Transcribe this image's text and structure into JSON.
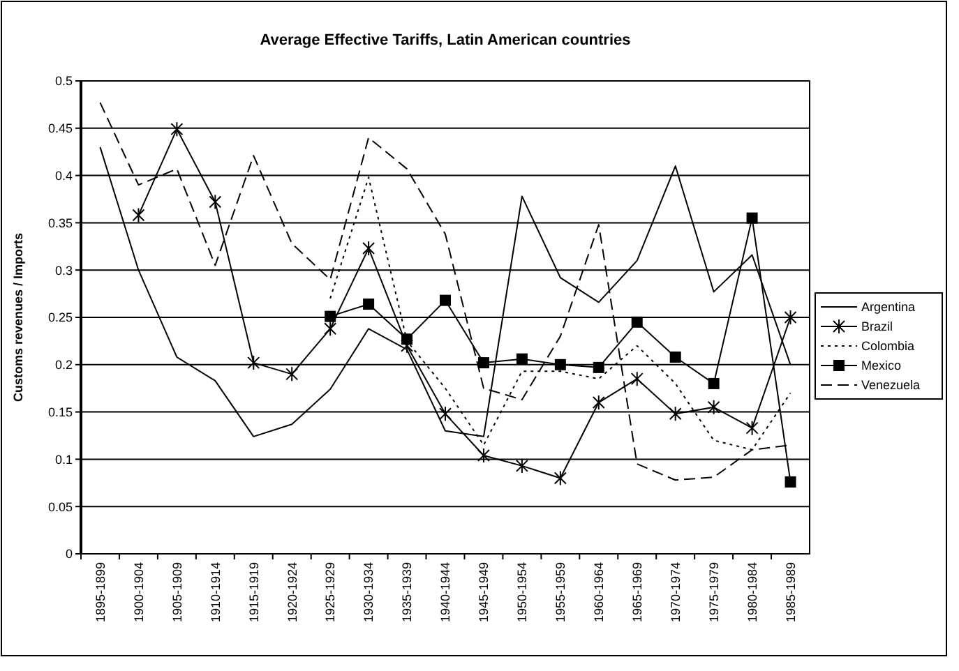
{
  "chart_data": {
    "type": "line",
    "title": "Average Effective Tariffs, Latin American countries",
    "ylabel": "Customs revenues  / Imports",
    "categories": [
      "1895-1899",
      "1900-1904",
      "1905-1909",
      "1910-1914",
      "1915-1919",
      "1920-1924",
      "1925-1929",
      "1930-1934",
      "1935-1939",
      "1940-1944",
      "1945-1949",
      "1950-1954",
      "1955-1959",
      "1960-1964",
      "1965-1969",
      "1970-1974",
      "1975-1979",
      "1980-1984",
      "1985-1989"
    ],
    "series": [
      {
        "name": "Argentina",
        "color": "#000000",
        "marker": "none",
        "line_style": "solid",
        "values": [
          0.43,
          0.3,
          0.208,
          0.183,
          0.124,
          0.137,
          0.174,
          0.238,
          0.216,
          0.13,
          0.124,
          0.378,
          0.292,
          0.266,
          0.31,
          0.41,
          0.277,
          0.316,
          0.2
        ]
      },
      {
        "name": "Brazil",
        "color": "#000000",
        "marker": "cross",
        "line_style": "solid",
        "values": [
          null,
          0.358,
          0.449,
          0.372,
          0.202,
          0.19,
          0.238,
          0.323,
          0.22,
          0.148,
          0.104,
          0.093,
          0.08,
          0.16,
          0.185,
          0.148,
          0.155,
          0.133,
          0.25
        ]
      },
      {
        "name": "Colombia",
        "color": "#000000",
        "marker": "none",
        "line_style": "dotted",
        "values": [
          null,
          null,
          null,
          null,
          null,
          null,
          0.27,
          0.398,
          0.225,
          0.175,
          0.115,
          0.193,
          0.193,
          0.185,
          0.22,
          0.18,
          0.12,
          0.11,
          0.17
        ]
      },
      {
        "name": "Mexico",
        "color": "#000000",
        "marker": "square",
        "line_style": "solid",
        "values": [
          null,
          null,
          null,
          null,
          null,
          null,
          0.251,
          0.264,
          0.227,
          0.268,
          0.202,
          0.206,
          0.2,
          0.197,
          0.245,
          0.208,
          0.18,
          0.355,
          0.076
        ]
      },
      {
        "name": "Venezuela",
        "color": "#000000",
        "marker": "none",
        "line_style": "dashed",
        "values": [
          0.477,
          0.39,
          0.407,
          0.305,
          0.421,
          0.328,
          0.29,
          0.44,
          0.407,
          0.338,
          0.175,
          0.163,
          0.23,
          0.348,
          0.095,
          0.078,
          0.081,
          0.11,
          0.115
        ]
      }
    ],
    "ylim": [
      0,
      0.5
    ],
    "yticks": [
      0,
      0.05,
      0.1,
      0.15,
      0.2,
      0.25,
      0.3,
      0.35,
      0.4,
      0.45,
      0.5
    ],
    "grid": "y",
    "legend": "right"
  }
}
